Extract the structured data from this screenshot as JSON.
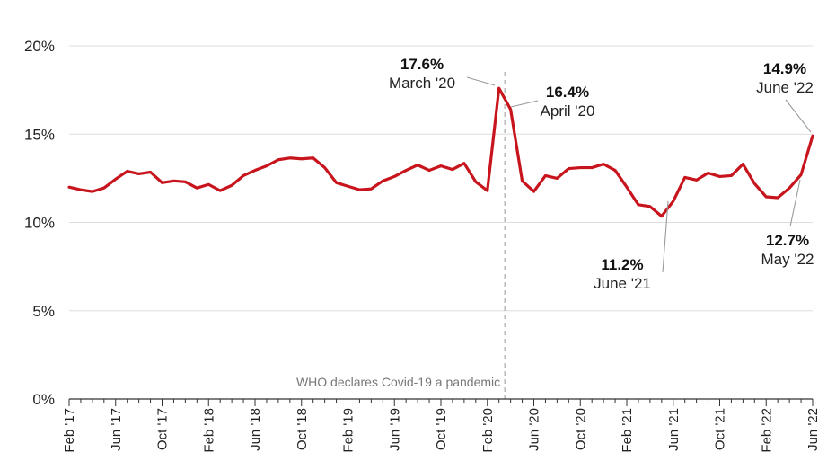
{
  "chart_data": {
    "type": "line",
    "caption": "",
    "x": [
      "Feb '17",
      "Mar '17",
      "Apr '17",
      "May '17",
      "Jun '17",
      "Jul '17",
      "Aug '17",
      "Sep '17",
      "Oct '17",
      "Nov '17",
      "Dec '17",
      "Jan '18",
      "Feb '18",
      "Mar '18",
      "Apr '18",
      "May '18",
      "Jun '18",
      "Jul '18",
      "Aug '18",
      "Sep '18",
      "Oct '18",
      "Nov '18",
      "Dec '18",
      "Jan '19",
      "Feb '19",
      "Mar '19",
      "Apr '19",
      "May '19",
      "Jun '19",
      "Jul '19",
      "Aug '19",
      "Sep '19",
      "Oct '19",
      "Nov '19",
      "Dec '19",
      "Jan '20",
      "Feb '20",
      "Mar '20",
      "Apr '20",
      "May '20",
      "Jun '20",
      "Jul '20",
      "Aug '20",
      "Sep '20",
      "Oct '20",
      "Nov '20",
      "Dec '20",
      "Jan '21",
      "Feb '21",
      "Mar '21",
      "Apr '21",
      "May '21",
      "Jun '21",
      "Jul '21",
      "Aug '21",
      "Sep '21",
      "Oct '21",
      "Nov '21",
      "Dec '21",
      "Jan '22",
      "Feb '22",
      "Mar '22",
      "Apr '22",
      "May '22",
      "Jun '22"
    ],
    "series": [
      {
        "color": "#c8141c",
        "values": [
          12.0,
          11.85,
          11.75,
          11.95,
          12.45,
          12.9,
          12.75,
          12.85,
          12.25,
          12.35,
          12.3,
          11.95,
          12.15,
          11.8,
          12.1,
          12.65,
          12.95,
          13.2,
          13.55,
          13.65,
          13.6,
          13.65,
          13.1,
          12.25,
          12.05,
          11.85,
          11.9,
          12.35,
          12.6,
          12.95,
          13.25,
          12.95,
          13.2,
          13.0,
          13.35,
          12.3,
          11.8,
          17.6,
          16.4,
          12.35,
          11.75,
          12.65,
          12.5,
          13.05,
          13.1,
          13.1,
          13.3,
          12.95,
          12.0,
          11.0,
          10.9,
          10.35,
          11.2,
          12.55,
          12.4,
          12.8,
          12.6,
          12.65,
          13.3,
          12.2,
          11.45,
          11.4,
          11.95,
          12.7,
          14.9
        ]
      }
    ],
    "x_tick_labels": [
      "Feb '17",
      "Jun '17",
      "Oct '17",
      "Feb '18",
      "Jun '18",
      "Oct '18",
      "Feb '19",
      "Jun '19",
      "Oct '19",
      "Feb '20",
      "Jun '20",
      "Oct '20",
      "Feb '21",
      "Jun '21",
      "Oct '21",
      "Feb '22",
      "Jun '22"
    ],
    "y_ticks": [
      0,
      5,
      10,
      15,
      20
    ],
    "y_tick_labels": [
      "0%",
      "5%",
      "10%",
      "15%",
      "20%"
    ],
    "ylim": [
      0,
      20
    ],
    "grid": true,
    "legend": "none",
    "annotations": [
      {
        "value": "17.6%",
        "date": "March '20",
        "index": 37
      },
      {
        "value": "16.4%",
        "date": "April '20",
        "index": 38
      },
      {
        "value": "11.2%",
        "date": "June '21",
        "index": 52
      },
      {
        "value": "14.9%",
        "date": "June '22",
        "index": 64
      },
      {
        "value": "12.7%",
        "date": "May '22",
        "index": 63
      }
    ],
    "event": {
      "label": "WHO declares Covid-19 a pandemic",
      "index": 37.5
    }
  }
}
